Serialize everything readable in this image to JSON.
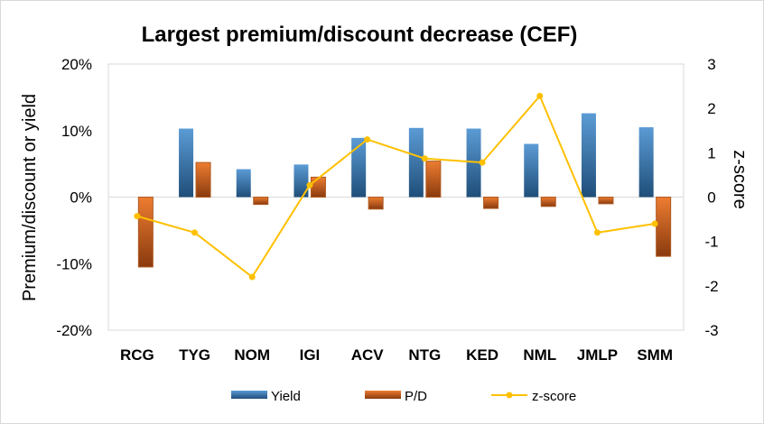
{
  "chart_data": {
    "type": "bar",
    "title": "Largest premium/discount decrease (CEF)",
    "ylabel": "Premium/discount or yield",
    "y2label": "z-score",
    "categories": [
      "RCG",
      "TYG",
      "NOM",
      "IGI",
      "ACV",
      "NTG",
      "KED",
      "NML",
      "JMLP",
      "SMM"
    ],
    "ylim": [
      -20,
      20
    ],
    "yticks": [
      -20,
      -10,
      0,
      10,
      20
    ],
    "ytick_labels": [
      "-20%",
      "-10%",
      "0%",
      "10%",
      "20%"
    ],
    "y2lim": [
      -3,
      3
    ],
    "y2ticks": [
      -3,
      -2,
      -1,
      0,
      1,
      2,
      3
    ],
    "y2tick_labels": [
      "-3",
      "-2",
      "-1",
      "0",
      "1",
      "2",
      "3"
    ],
    "grid": false,
    "legend_position": "bottom",
    "series": [
      {
        "name": "Yield",
        "kind": "bar",
        "axis": "left",
        "color": "#5b9bd5",
        "values": [
          0,
          10.3,
          4.2,
          4.9,
          8.9,
          10.4,
          10.3,
          8.0,
          12.6,
          10.5
        ]
      },
      {
        "name": "P/D",
        "kind": "bar",
        "axis": "left",
        "color": "#ed7d31",
        "values": [
          -10.5,
          5.2,
          -1.1,
          3.0,
          -1.8,
          5.4,
          -1.7,
          -1.4,
          -1.0,
          -8.9
        ]
      },
      {
        "name": "z-score",
        "kind": "line",
        "axis": "right",
        "color": "#ffc000",
        "values": [
          -0.43,
          -0.8,
          -1.8,
          0.27,
          1.3,
          0.87,
          0.78,
          2.28,
          -0.8,
          -0.6
        ]
      }
    ]
  }
}
